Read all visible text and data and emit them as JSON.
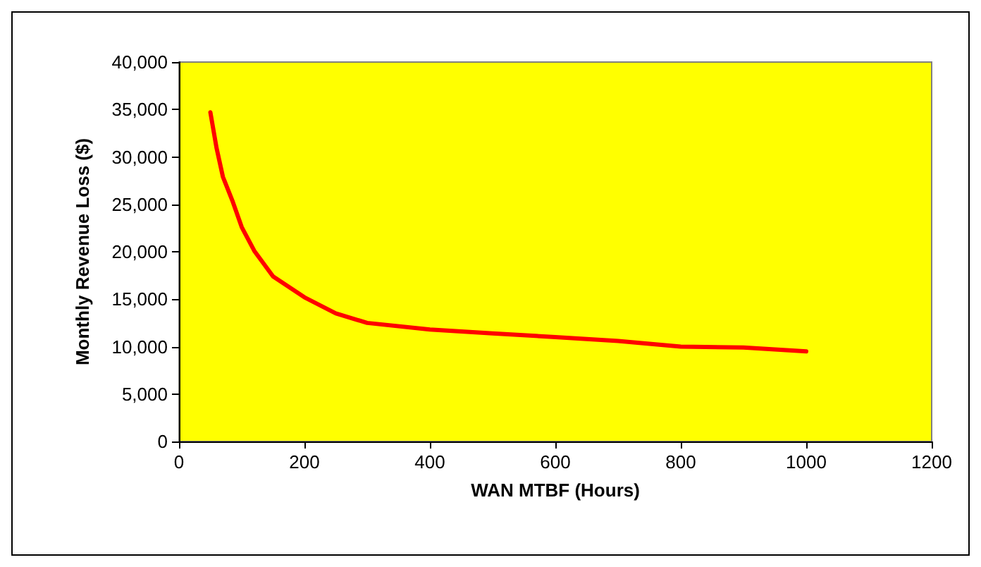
{
  "chart_data": {
    "type": "line",
    "xlabel": "WAN MTBF (Hours)",
    "ylabel": "Monthly Revenue Loss ($)",
    "series": [
      {
        "color": "#ff0000",
        "x": [
          50,
          60,
          70,
          85,
          100,
          120,
          150,
          200,
          250,
          300,
          400,
          500,
          600,
          700,
          800,
          900,
          1000
        ],
        "values": [
          34700,
          30900,
          27900,
          25400,
          22600,
          20100,
          17400,
          15200,
          13500,
          12500,
          11800,
          11400,
          11000,
          10600,
          10000,
          9900,
          9500
        ]
      }
    ],
    "xlim": [
      0,
      1200
    ],
    "xticks": [
      0,
      200,
      400,
      600,
      800,
      1000,
      1200
    ],
    "ylim": [
      0,
      40000
    ],
    "yticks": [
      0,
      {
        "value": 5000,
        "label": "5,000"
      },
      {
        "value": 10000,
        "label": "10,000"
      },
      {
        "value": 15000,
        "label": "15,000"
      },
      {
        "value": 20000,
        "label": "20,000"
      },
      {
        "value": 25000,
        "label": "25,000"
      },
      {
        "value": 30000,
        "label": "30,000"
      },
      {
        "value": 35000,
        "label": "35,000"
      },
      {
        "value": 40000,
        "label": "40,000"
      }
    ],
    "grid": false,
    "marker": "none",
    "line_style": "solid"
  }
}
